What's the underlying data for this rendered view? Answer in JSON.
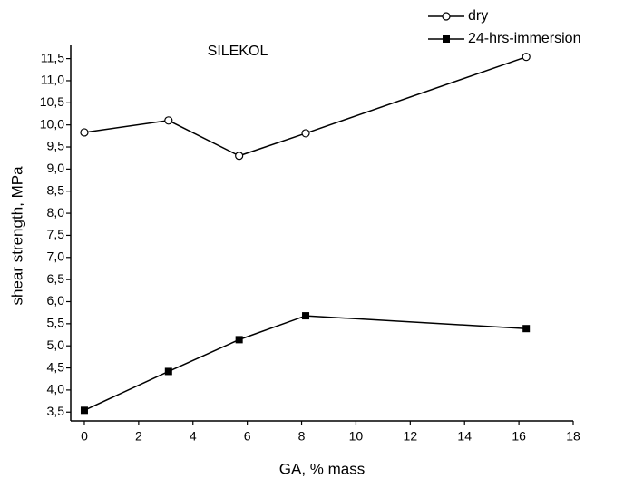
{
  "chart_data": {
    "type": "line",
    "title": "SILEKOL",
    "x_label": "GA, % mass",
    "y_label": "shear strength, MPa",
    "xlim": [
      -0.5,
      18
    ],
    "ylim": [
      3.3,
      11.8
    ],
    "xticks": [
      0,
      2,
      4,
      6,
      8,
      10,
      12,
      14,
      16,
      18
    ],
    "yticks": [
      {
        "value": 3.5,
        "label": "3,5"
      },
      {
        "value": 4.0,
        "label": "4,0"
      },
      {
        "value": 4.5,
        "label": "4,5"
      },
      {
        "value": 5.0,
        "label": "5,0"
      },
      {
        "value": 5.5,
        "label": "5,5"
      },
      {
        "value": 6.0,
        "label": "6,0"
      },
      {
        "value": 6.5,
        "label": "6,5"
      },
      {
        "value": 7.0,
        "label": "7,0"
      },
      {
        "value": 7.5,
        "label": "7,5"
      },
      {
        "value": 8.0,
        "label": "8,0"
      },
      {
        "value": 8.5,
        "label": "8,5"
      },
      {
        "value": 9.0,
        "label": "9,0"
      },
      {
        "value": 9.5,
        "label": "9,5"
      },
      {
        "value": 10.0,
        "label": "10,0"
      },
      {
        "value": 10.5,
        "label": "10,5"
      },
      {
        "value": 11.0,
        "label": "11,0"
      },
      {
        "value": 11.5,
        "label": "11,5"
      }
    ],
    "legend_position": "upper right",
    "series": [
      {
        "name": "dry",
        "color": "#000000",
        "marker": "open-circle",
        "x": [
          0,
          3.1,
          5.7,
          8.15,
          16.27
        ],
        "values": [
          9.83,
          10.1,
          9.3,
          9.81,
          11.54
        ]
      },
      {
        "name": "24-hrs-immersion",
        "color": "#000000",
        "marker": "filled-square",
        "x": [
          0,
          3.1,
          5.7,
          8.15,
          16.27
        ],
        "values": [
          3.54,
          4.42,
          5.14,
          5.68,
          5.39
        ]
      }
    ]
  }
}
